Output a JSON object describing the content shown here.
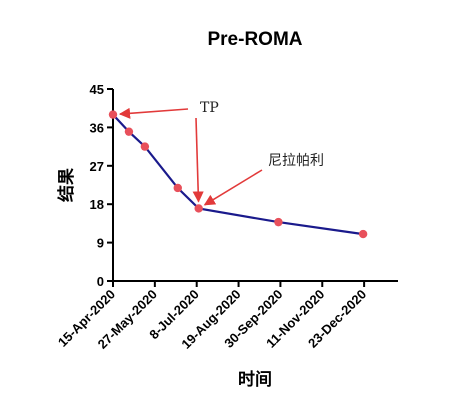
{
  "chart_data": {
    "type": "line",
    "title": "Pre-ROMA",
    "xlabel": "时间",
    "ylabel": "结果",
    "x_tick_labels": [
      "15-Apr-2020",
      "27-May-2020",
      "8-Jul-2020",
      "19-Aug-2020",
      "30-Sep-2020",
      "11-Nov-2020",
      "23-Dec-2020"
    ],
    "x_ticks": [
      "2020-04-15",
      "2020-05-27",
      "2020-07-08",
      "2020-08-19",
      "2020-09-30",
      "2020-11-11",
      "2020-12-23"
    ],
    "xlim": [
      "2020-04-15",
      "2021-01-26"
    ],
    "y_ticks": [
      0,
      9,
      18,
      27,
      36,
      45
    ],
    "ylim": [
      0,
      45
    ],
    "grid": false,
    "series": [
      {
        "color": "#1a1a8c",
        "marker_color": "#e8505b",
        "points": [
          {
            "x": "2020-04-15",
            "y": 39.0
          },
          {
            "x": "2020-05-01",
            "y": 35.0
          },
          {
            "x": "2020-05-17",
            "y": 31.5
          },
          {
            "x": "2020-06-19",
            "y": 21.8
          },
          {
            "x": "2020-07-10",
            "y": 17.0
          },
          {
            "x": "2020-09-28",
            "y": 13.8
          },
          {
            "x": "2020-12-22",
            "y": 11.0
          }
        ]
      }
    ],
    "annotations": [
      {
        "text": "TP",
        "color": "#e23a3a",
        "targets": [
          {
            "x": "2020-04-15",
            "y": 39.0
          },
          {
            "x": "2020-07-10",
            "y": 17.0
          }
        ]
      },
      {
        "text": "尼拉帕利",
        "color": "#e23a3a",
        "targets": [
          {
            "x": "2020-07-10",
            "y": 17.0
          }
        ]
      }
    ]
  }
}
